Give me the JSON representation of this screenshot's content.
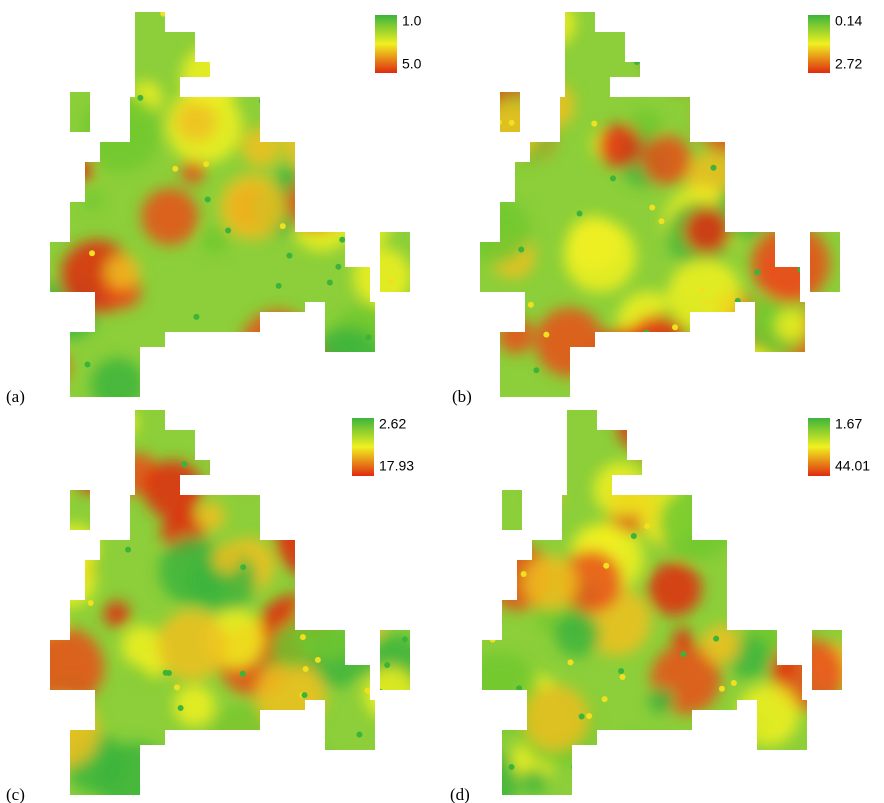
{
  "panels": [
    {
      "label": "(a)",
      "legend": {
        "top": "1.0",
        "bottom": "5.0"
      }
    },
    {
      "label": "(b)",
      "legend": {
        "top": "0.14",
        "bottom": "2.72"
      }
    },
    {
      "label": "(c)",
      "legend": {
        "top": "2.62",
        "bottom": "17.93"
      }
    },
    {
      "label": "(d)",
      "legend": {
        "top": "1.67",
        "bottom": "44.01"
      }
    }
  ]
}
